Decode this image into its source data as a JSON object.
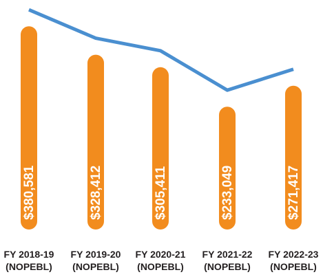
{
  "chart_data": {
    "type": "bar",
    "categories": [
      [
        "FY 2018-19",
        "(NOPEBL)"
      ],
      [
        "FY 2019-20",
        "(NOPEBL)"
      ],
      [
        "FY 2020-21",
        "(NOPEBL)"
      ],
      [
        "FY 2021-22",
        "(NOPEBL)"
      ],
      [
        "FY 2022-23",
        "(NOPEBL)"
      ]
    ],
    "values": [
      380581,
      328412,
      305411,
      233049,
      271417
    ],
    "value_labels": [
      "$380,581",
      "$328,412",
      "$305,411",
      "$233,049",
      "$271,417"
    ],
    "color": "#f28c1e",
    "line_color": "#4a8fd0"
  }
}
